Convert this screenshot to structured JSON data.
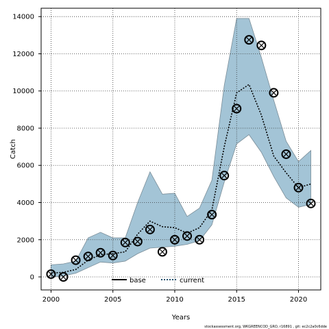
{
  "chart_data": {
    "type": "line",
    "xlabel": "Years",
    "ylabel": "Catch",
    "xlim": [
      1999.2,
      2021.8
    ],
    "ylim": [
      -700,
      14450
    ],
    "xticks": [
      2000,
      2005,
      2010,
      2015,
      2020
    ],
    "yticks": [
      0,
      2000,
      4000,
      6000,
      8000,
      10000,
      12000,
      14000
    ],
    "grid": true,
    "legend_position": "bottom-center",
    "band": {
      "color": "#a3c4d6",
      "x": [
        2000,
        2001,
        2002,
        2003,
        2004,
        2005,
        2006,
        2007,
        2008,
        2009,
        2010,
        2011,
        2012,
        2013,
        2014,
        2015,
        2016,
        2017,
        2018,
        2019,
        2020,
        2021
      ],
      "upper": [
        650,
        700,
        850,
        2100,
        2400,
        2100,
        2100,
        4000,
        5650,
        4450,
        4500,
        3250,
        3700,
        5200,
        10300,
        13900,
        13900,
        11800,
        9500,
        7300,
        6200,
        6800
      ],
      "lower": [
        0,
        50,
        200,
        500,
        800,
        750,
        850,
        1250,
        1550,
        1600,
        1650,
        1750,
        1950,
        2800,
        5100,
        7150,
        7650,
        6700,
        5400,
        4250,
        3750,
        3900
      ]
    },
    "series": [
      {
        "name": "current",
        "style": "dotted",
        "color": "#000000",
        "x": [
          2000,
          2001,
          2002,
          2003,
          2004,
          2005,
          2006,
          2007,
          2008,
          2009,
          2010,
          2011,
          2012,
          2013,
          2014,
          2015,
          2016,
          2017,
          2018,
          2019,
          2020,
          2021
        ],
        "values": [
          200,
          250,
          400,
          900,
          1200,
          1250,
          1350,
          2300,
          3000,
          2700,
          2650,
          2350,
          2650,
          3600,
          7000,
          9900,
          10350,
          8700,
          6500,
          5600,
          4800,
          5000
        ]
      }
    ],
    "markers": {
      "style": "circle-x",
      "x": [
        2000,
        2001,
        2002,
        2003,
        2004,
        2005,
        2006,
        2007,
        2008,
        2009,
        2010,
        2011,
        2012,
        2013,
        2014,
        2015,
        2016,
        2017,
        2018,
        2019,
        2020,
        2021
      ],
      "values": [
        150,
        0,
        900,
        1100,
        1300,
        1150,
        1850,
        1900,
        2550,
        1350,
        2000,
        2200,
        2000,
        3350,
        5450,
        9050,
        12750,
        12450,
        9900,
        6600,
        4800,
        3950
      ]
    },
    "legend": [
      {
        "label": "base",
        "style": "solid"
      },
      {
        "label": "current",
        "style": "dotted"
      }
    ],
    "footnote": "stockassessment.org, WKGREENCOD_GRO, r16891 , git: ec2c2a0c6dde"
  }
}
